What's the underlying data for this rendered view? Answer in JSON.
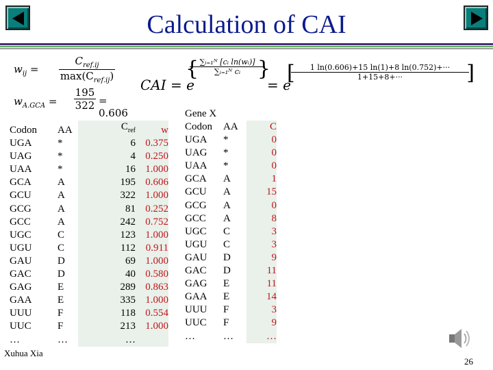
{
  "slide": {
    "title": "Calculation of CAI",
    "author": "Xuhua Xia",
    "page_number": "26",
    "colors": {
      "title": "#0b1a8c",
      "accent_teal": "#0a7e7a",
      "red": "#c0141a",
      "band_purple": "#4b2a7a",
      "band_green": "#5aa85a"
    }
  },
  "formulas": {
    "w_def_lhs": "w",
    "w_def_lhs_sub": "ij",
    "w_def_num": "C",
    "w_def_num_sub": "ref.ij",
    "w_def_den": "max(C",
    "w_def_den_sub": "ref.ij",
    "w_def_den_end": ")",
    "w_gca_lhs": "w",
    "w_gca_sub": "A.GCA",
    "w_gca_num": "195",
    "w_gca_den": "322",
    "w_gca_value": "= 0.606",
    "cai_lhs": "CAI = e",
    "cai_exp_num": "∑ᵢ₌₁ᴺ [cᵢ ln(wᵢ)]",
    "cai_exp_den": "∑ᵢ₌₁ᴺ cᵢ",
    "cai_eq2": "= e",
    "cai_exp2_num": "1 ln(0.606)+15 ln(1)+8 ln(0.752)+···",
    "cai_exp2_den": "1+15+8+···"
  },
  "left_table": {
    "headers": {
      "codon": "Codon",
      "aa": "AA",
      "cref": "C",
      "cref_sub": "ref",
      "w": "w"
    },
    "rows": [
      {
        "codon": "UGA",
        "aa": "*",
        "cref": "6",
        "w": "0.375"
      },
      {
        "codon": "UAG",
        "aa": "*",
        "cref": "4",
        "w": "0.250"
      },
      {
        "codon": "UAA",
        "aa": "*",
        "cref": "16",
        "w": "1.000"
      },
      {
        "codon": "GCA",
        "aa": "A",
        "cref": "195",
        "w": "0.606"
      },
      {
        "codon": "GCU",
        "aa": "A",
        "cref": "322",
        "w": "1.000"
      },
      {
        "codon": "GCG",
        "aa": "A",
        "cref": "81",
        "w": "0.252"
      },
      {
        "codon": "GCC",
        "aa": "A",
        "cref": "242",
        "w": "0.752"
      },
      {
        "codon": "UGC",
        "aa": "C",
        "cref": "123",
        "w": "1.000"
      },
      {
        "codon": "UGU",
        "aa": "C",
        "cref": "112",
        "w": "0.911"
      },
      {
        "codon": "GAU",
        "aa": "D",
        "cref": "69",
        "w": "1.000"
      },
      {
        "codon": "GAC",
        "aa": "D",
        "cref": "40",
        "w": "0.580"
      },
      {
        "codon": "GAG",
        "aa": "E",
        "cref": "289",
        "w": "0.863"
      },
      {
        "codon": "GAA",
        "aa": "E",
        "cref": "335",
        "w": "1.000"
      },
      {
        "codon": "UUU",
        "aa": "F",
        "cref": "118",
        "w": "0.554"
      },
      {
        "codon": "UUC",
        "aa": "F",
        "cref": "213",
        "w": "1.000"
      },
      {
        "codon": "…",
        "aa": "…",
        "cref": "…",
        "w": ""
      }
    ]
  },
  "right_table": {
    "caption": "Gene X",
    "headers": {
      "codon": "Codon",
      "aa": "AA",
      "c": "C"
    },
    "rows": [
      {
        "codon": "UGA",
        "aa": "*",
        "c": "0"
      },
      {
        "codon": "UAG",
        "aa": "*",
        "c": "0"
      },
      {
        "codon": "UAA",
        "aa": "*",
        "c": "0"
      },
      {
        "codon": "GCA",
        "aa": "A",
        "c": "1"
      },
      {
        "codon": "GCU",
        "aa": "A",
        "c": "15"
      },
      {
        "codon": "GCG",
        "aa": "A",
        "c": "0"
      },
      {
        "codon": "GCC",
        "aa": "A",
        "c": "8"
      },
      {
        "codon": "UGC",
        "aa": "C",
        "c": "3"
      },
      {
        "codon": "UGU",
        "aa": "C",
        "c": "3"
      },
      {
        "codon": "GAU",
        "aa": "D",
        "c": "9"
      },
      {
        "codon": "GAC",
        "aa": "D",
        "c": "11"
      },
      {
        "codon": "GAG",
        "aa": "E",
        "c": "11"
      },
      {
        "codon": "GAA",
        "aa": "E",
        "c": "14"
      },
      {
        "codon": "UUU",
        "aa": "F",
        "c": "3"
      },
      {
        "codon": "UUC",
        "aa": "F",
        "c": "9"
      },
      {
        "codon": "…",
        "aa": "…",
        "c": "…"
      }
    ]
  },
  "icons": {
    "prev": "previous-slide-icon",
    "next": "next-slide-icon",
    "audio": "speaker-icon"
  }
}
